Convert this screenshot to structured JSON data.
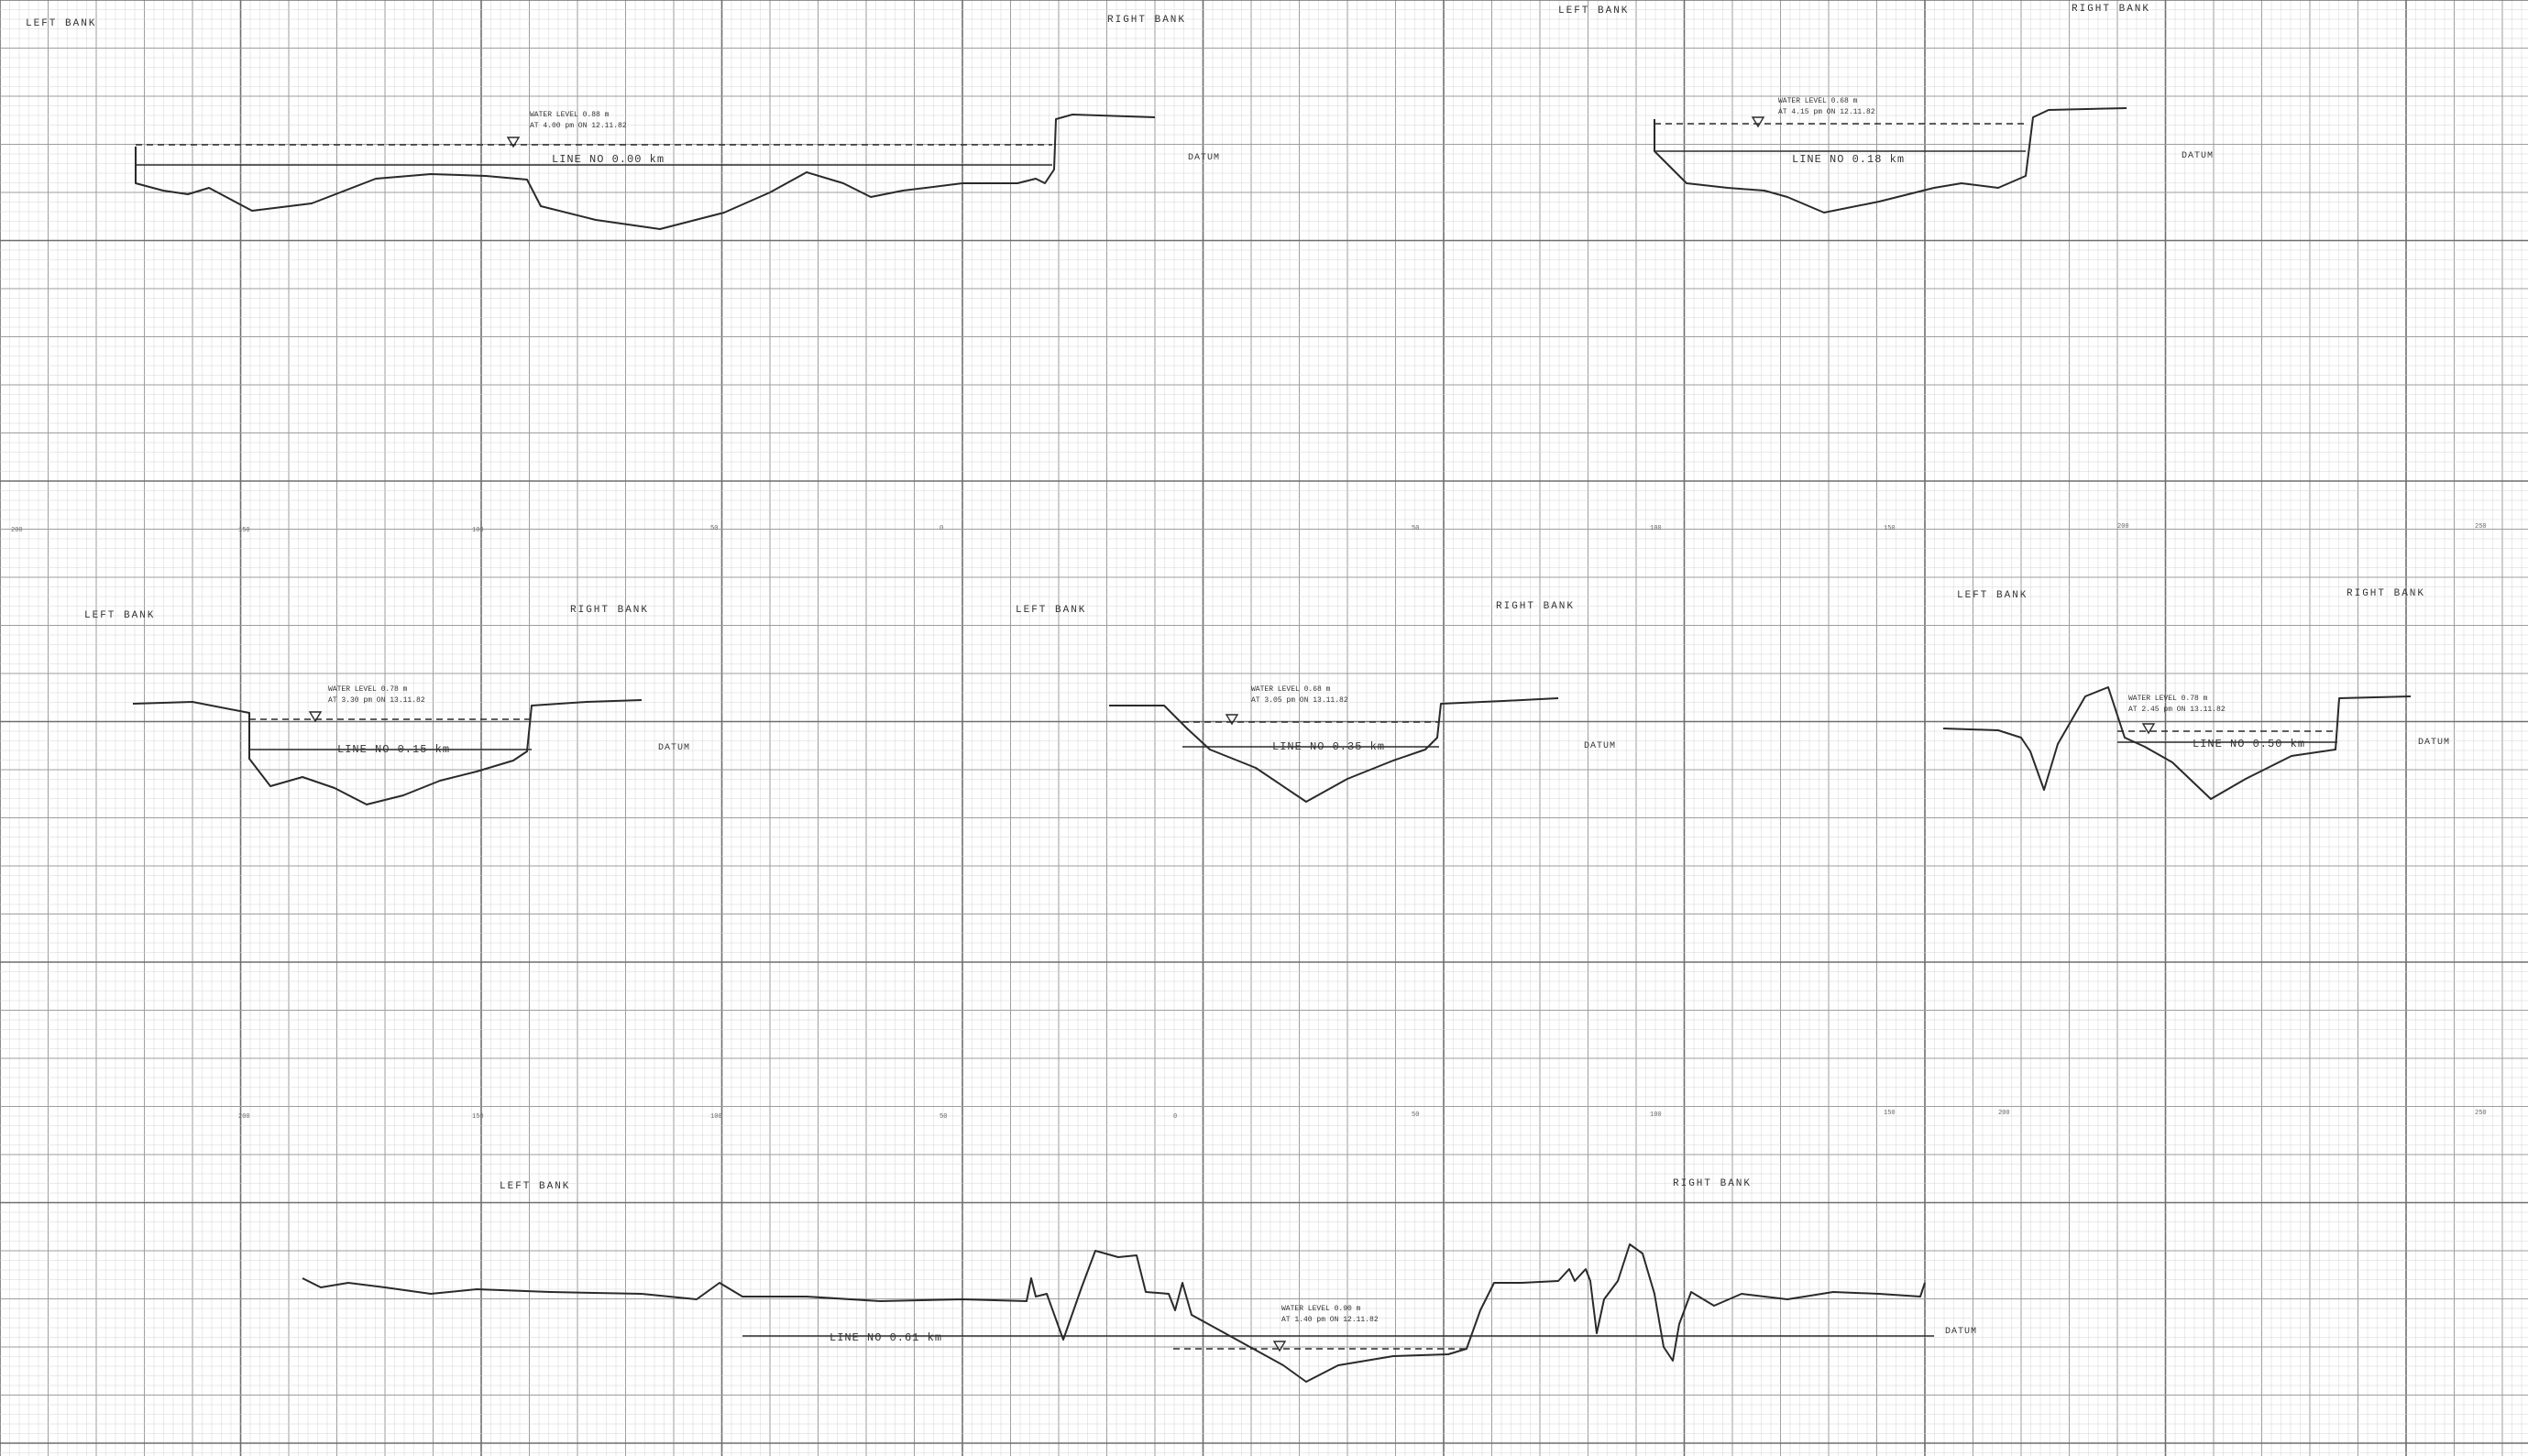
{
  "sheet": {
    "title": "",
    "ink_color": "#2a2a2a",
    "grid_color_minor": "#d4d4d4",
    "grid_color_major": "#9e9e9e",
    "grid_color_bold": "#6e6e6e"
  },
  "profiles": [
    {
      "left_bank": "LEFT BANK",
      "right_bank": "RIGHT BANK",
      "water_level_line1": "WATER LEVEL 0.88 m",
      "water_level_line2": "AT 4.00 pm ON 12.11.82",
      "line_no": "LINE NO 0.00 km",
      "datum": "DATUM"
    },
    {
      "left_bank": "LEFT BANK",
      "right_bank": "RIGHT BANK",
      "water_level_line1": "WATER LEVEL 0.68 m",
      "water_level_line2": "AT 4.15 pm ON 12.11.82",
      "line_no": "LINE NO 0.18 km",
      "datum": "DATUM"
    },
    {
      "left_bank": "LEFT BANK",
      "right_bank": "RIGHT BANK",
      "water_level_line1": "WATER LEVEL 0.78 m",
      "water_level_line2": "AT 3.30 pm ON 13.11.82",
      "line_no": "LINE NO 0.15 km",
      "datum": "DATUM"
    },
    {
      "left_bank": "LEFT BANK",
      "right_bank": "RIGHT BANK",
      "water_level_line1": "WATER LEVEL 0.68 m",
      "water_level_line2": "AT 3.05 pm ON 13.11.82",
      "line_no": "LINE NO 0.35 km",
      "datum": "DATUM"
    },
    {
      "left_bank": "LEFT BANK",
      "right_bank": "RIGHT BANK",
      "water_level_line1": "WATER LEVEL 0.78 m",
      "water_level_line2": "AT 2.45 pm ON 13.11.82",
      "line_no": "LINE NO 0.50 km",
      "datum": "DATUM"
    },
    {
      "left_bank": "LEFT BANK",
      "right_bank": "RIGHT BANK",
      "water_level_line1": "WATER LEVEL 0.90 m",
      "water_level_line2": "AT 1.40 pm ON 12.11.82",
      "line_no": "LINE NO 0.61 km",
      "datum": "DATUM"
    }
  ],
  "scale_labels": {
    "row1": [
      "200",
      "150",
      "100",
      "50",
      "0",
      "50",
      "100",
      "150",
      "200",
      "250"
    ],
    "row2": [
      "200",
      "150",
      "100",
      "50",
      "0",
      "50",
      "100",
      "150",
      "200",
      "250"
    ]
  }
}
